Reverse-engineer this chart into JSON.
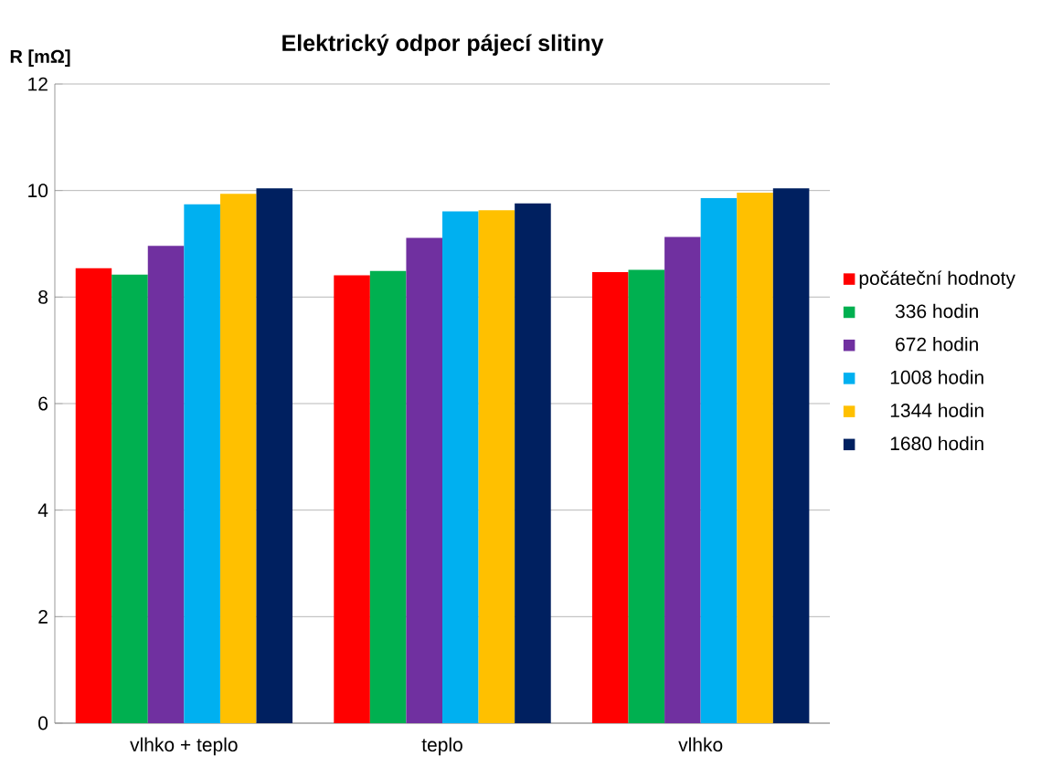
{
  "chart_data": {
    "type": "bar",
    "title": "Elektrický odpor pájecí slitiny",
    "ylabel": "R [mΩ]",
    "categories": [
      "vlhko + teplo",
      "teplo",
      "vlhko"
    ],
    "series": [
      {
        "name": "počáteční hodnoty",
        "color": "#ff0000",
        "values": [
          8.54,
          8.41,
          8.47
        ]
      },
      {
        "name": "336 hodin",
        "color": "#00b050",
        "values": [
          8.42,
          8.49,
          8.51
        ]
      },
      {
        "name": "672 hodin",
        "color": "#7030a0",
        "values": [
          8.96,
          9.11,
          9.13
        ]
      },
      {
        "name": "1008 hodin",
        "color": "#00b0f0",
        "values": [
          9.74,
          9.61,
          9.86
        ]
      },
      {
        "name": "1344 hodin",
        "color": "#ffc000",
        "values": [
          9.94,
          9.63,
          9.96
        ]
      },
      {
        "name": "1680 hodin",
        "color": "#002060",
        "values": [
          10.04,
          9.76,
          10.04
        ]
      }
    ],
    "ylim": [
      0,
      12
    ],
    "yticks": [
      0,
      2,
      4,
      6,
      8,
      10,
      12
    ],
    "grid": "y",
    "legend": "right"
  }
}
